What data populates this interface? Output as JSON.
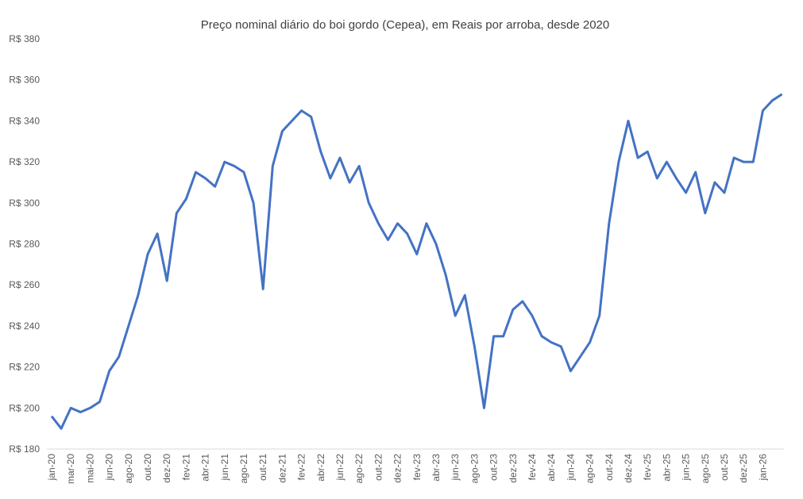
{
  "chart_data": {
    "type": "line",
    "title": "Preço nominal diário do boi gordo (Cepea), em Reais por arroba, desde 2020",
    "categories": [
      "jan-20",
      null,
      "mar-20",
      null,
      "mai-20",
      null,
      "jun-20",
      null,
      "ago-20",
      null,
      "out-20",
      null,
      "dez-20",
      null,
      "fev-21",
      null,
      "abr-21",
      null,
      "jun-21",
      null,
      "ago-21",
      null,
      "out-21",
      null,
      "dez-21",
      null,
      "fev-22",
      null,
      "abr-22",
      null,
      "jun-22",
      null,
      "ago-22",
      null,
      "out-22",
      null,
      "dez-22",
      null,
      "fev-23",
      null,
      "abr-23",
      null,
      "jun-23",
      null,
      "ago-23",
      null,
      "out-23",
      null,
      "dez-23",
      null,
      "fev-24",
      null,
      "abr-24",
      null,
      "jun-24",
      null,
      "ago-24",
      null,
      "out-24",
      null,
      "dez-24",
      null,
      "fev-25",
      null,
      "abr-25",
      null,
      "jun-25",
      null,
      "ago-25",
      null,
      "out-25",
      null,
      "dez-25",
      null,
      "jan-26",
      null,
      null
    ],
    "series": [
      {
        "name": "Boi gordo",
        "color": "#4472c4",
        "values": [
          196,
          190,
          200,
          198,
          200,
          203,
          218,
          225,
          240,
          255,
          275,
          285,
          262,
          295,
          302,
          315,
          312,
          308,
          320,
          318,
          315,
          300,
          258,
          318,
          335,
          340,
          345,
          342,
          325,
          312,
          322,
          310,
          318,
          300,
          290,
          282,
          290,
          285,
          275,
          290,
          280,
          265,
          245,
          255,
          230,
          200,
          235,
          235,
          248,
          252,
          245,
          235,
          232,
          230,
          218,
          225,
          232,
          245,
          290,
          320,
          340,
          322,
          325,
          312,
          320,
          312,
          305,
          315,
          295,
          310,
          305,
          322,
          320,
          320,
          345,
          350,
          353
        ]
      }
    ],
    "ylim": [
      180,
      380
    ],
    "yticks": [
      {
        "value": 180,
        "label": "R$ 180"
      },
      {
        "value": 200,
        "label": "R$ 200"
      },
      {
        "value": 220,
        "label": "R$ 220"
      },
      {
        "value": 240,
        "label": "R$ 240"
      },
      {
        "value": 260,
        "label": "R$ 260"
      },
      {
        "value": 280,
        "label": "R$ 280"
      },
      {
        "value": 300,
        "label": "R$ 300"
      },
      {
        "value": 320,
        "label": "R$ 320"
      },
      {
        "value": 340,
        "label": "R$ 340"
      },
      {
        "value": 360,
        "label": "R$ 360"
      },
      {
        "value": 380,
        "label": "R$ 380"
      }
    ],
    "grid": false
  }
}
